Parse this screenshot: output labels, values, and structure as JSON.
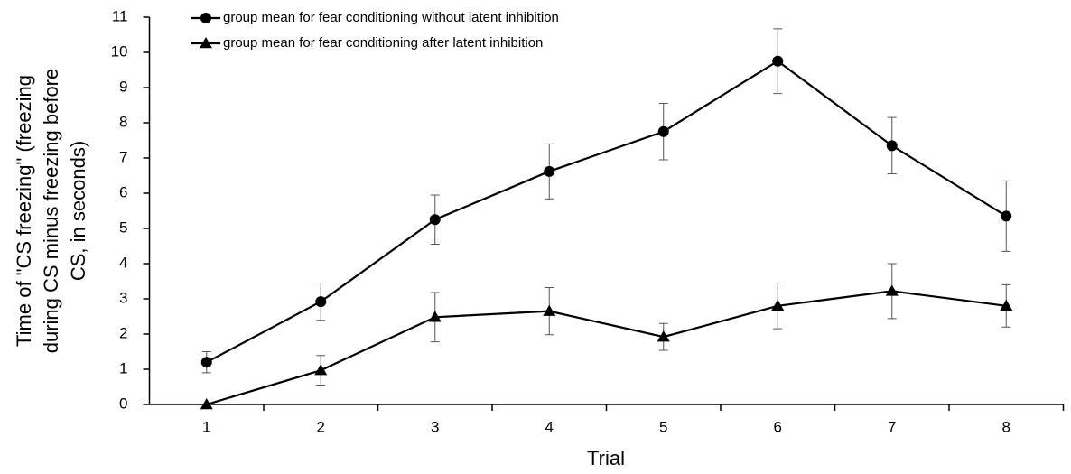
{
  "chart_data": {
    "type": "line",
    "xlabel": "Trial",
    "ylabel_lines": [
      "Time of \"CS freezing\" (freezing",
      "during CS minus freezing before",
      "CS, in seconds)"
    ],
    "categories": [
      "1",
      "2",
      "3",
      "4",
      "5",
      "6",
      "7",
      "8"
    ],
    "ylim": [
      0,
      11
    ],
    "yticks": [
      0,
      1,
      2,
      3,
      4,
      5,
      6,
      7,
      8,
      9,
      10,
      11
    ],
    "series": [
      {
        "name": "group mean for fear conditioning without latent inhibition",
        "color": "#000000",
        "marker": "circle",
        "values": [
          1.2,
          2.92,
          5.25,
          6.62,
          7.75,
          9.75,
          7.35,
          5.35
        ],
        "errors": [
          0.3,
          0.53,
          0.7,
          0.78,
          0.8,
          0.92,
          0.8,
          1.0
        ]
      },
      {
        "name": "group mean for fear conditioning after latent inhibition",
        "color": "#000000",
        "marker": "triangle",
        "values": [
          0,
          0.97,
          2.48,
          2.65,
          1.92,
          2.8,
          3.22,
          2.8
        ],
        "errors": [
          0,
          0.42,
          0.7,
          0.67,
          0.38,
          0.65,
          0.78,
          0.6
        ]
      }
    ]
  }
}
